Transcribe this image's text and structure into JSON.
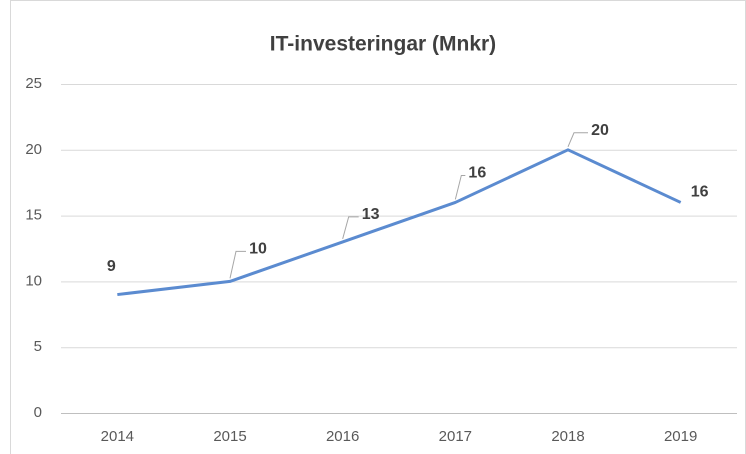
{
  "chart_data": {
    "type": "line",
    "title": "IT-investeringar (Mnkr)",
    "categories": [
      "2014",
      "2015",
      "2016",
      "2017",
      "2018",
      "2019"
    ],
    "series": [
      {
        "name": "IT-investeringar",
        "color": "#5b8bd0",
        "values": [
          9,
          10,
          13,
          16,
          20,
          16
        ]
      }
    ],
    "ylim": [
      0,
      25
    ],
    "yticks": [
      0,
      5,
      10,
      15,
      20,
      25
    ],
    "grid": true
  }
}
